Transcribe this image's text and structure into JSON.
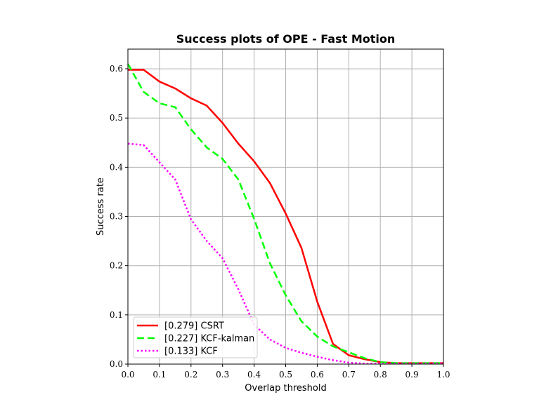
{
  "chart_data": {
    "type": "line",
    "title": "Success plots of OPE - Fast Motion",
    "xlabel": "Overlap threshold",
    "ylabel": "Success rate",
    "xlim": [
      0,
      1
    ],
    "ylim": [
      0,
      0.64
    ],
    "xticks": [
      "0.0",
      "0.1",
      "0.2",
      "0.3",
      "0.4",
      "0.5",
      "0.6",
      "0.7",
      "0.8",
      "0.9",
      "1.0"
    ],
    "yticks": [
      "0.0",
      "0.1",
      "0.2",
      "0.3",
      "0.4",
      "0.5",
      "0.6"
    ],
    "grid": true,
    "legend_position": "lower-left",
    "x": [
      0,
      0.05,
      0.1,
      0.15,
      0.2,
      0.25,
      0.3,
      0.35,
      0.4,
      0.45,
      0.5,
      0.55,
      0.6,
      0.65,
      0.7,
      0.75,
      0.8,
      0.85,
      0.9,
      0.95,
      1.0
    ],
    "series": [
      {
        "name": "[0.279] CSRT",
        "color": "#ff0000",
        "style": "solid",
        "values": [
          0.598,
          0.598,
          0.574,
          0.56,
          0.54,
          0.525,
          0.49,
          0.448,
          0.412,
          0.368,
          0.306,
          0.236,
          0.127,
          0.041,
          0.018,
          0.01,
          0.004,
          0.002,
          0.002,
          0.002,
          0.002
        ]
      },
      {
        "name": "[0.227] KCF-kalman",
        "color": "#00ff00",
        "style": "dashed",
        "values": [
          0.61,
          0.553,
          0.53,
          0.522,
          0.477,
          0.44,
          0.417,
          0.375,
          0.295,
          0.205,
          0.14,
          0.087,
          0.056,
          0.036,
          0.024,
          0.012,
          0.004,
          0.002,
          0.002,
          0.002,
          0.002
        ]
      },
      {
        "name": "[0.133] KCF",
        "color": "#ff00ff",
        "style": "dotted",
        "values": [
          0.448,
          0.445,
          0.41,
          0.375,
          0.294,
          0.25,
          0.215,
          0.152,
          0.08,
          0.05,
          0.033,
          0.023,
          0.015,
          0.008,
          0.003,
          0.001,
          0.001,
          0.001,
          0.001,
          0.001,
          0.001
        ]
      }
    ]
  }
}
